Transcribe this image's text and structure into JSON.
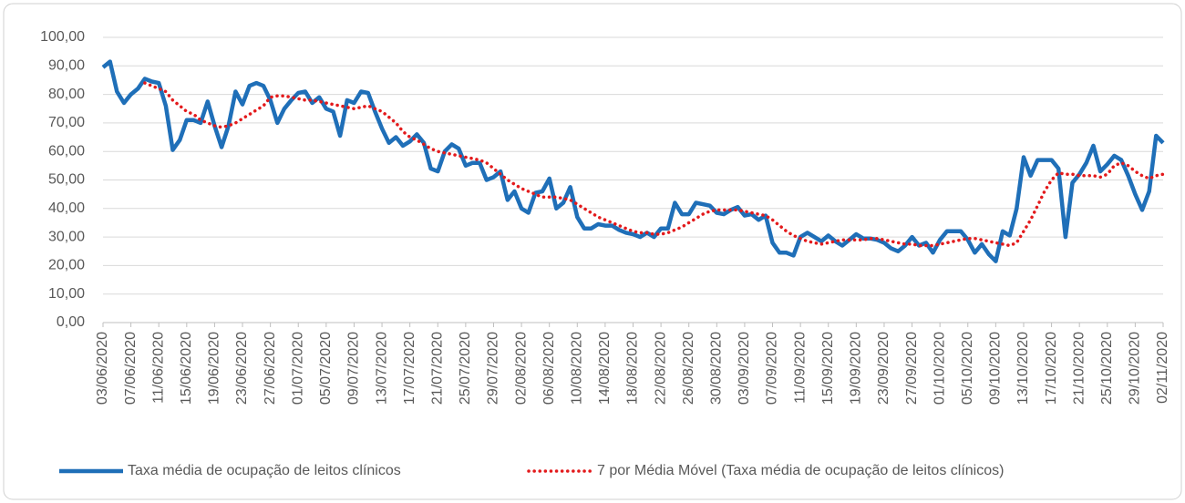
{
  "chart_data": {
    "type": "line",
    "categories": [
      "03/06/2020",
      null,
      null,
      null,
      "07/06/2020",
      null,
      null,
      null,
      "11/06/2020",
      null,
      null,
      null,
      "15/06/2020",
      null,
      null,
      null,
      "19/06/2020",
      null,
      null,
      null,
      "23/06/2020",
      null,
      null,
      null,
      "27/06/2020",
      null,
      null,
      null,
      "01/07/2020",
      null,
      null,
      null,
      "05/07/2020",
      null,
      null,
      null,
      "09/07/2020",
      null,
      null,
      null,
      "13/07/2020",
      null,
      null,
      null,
      "17/07/2020",
      null,
      null,
      null,
      "21/07/2020",
      null,
      null,
      null,
      "25/07/2020",
      null,
      null,
      null,
      "29/07/2020",
      null,
      null,
      null,
      "02/08/2020",
      null,
      null,
      null,
      "06/08/2020",
      null,
      null,
      null,
      "10/08/2020",
      null,
      null,
      null,
      "14/08/2020",
      null,
      null,
      null,
      "18/08/2020",
      null,
      null,
      null,
      "22/08/2020",
      null,
      null,
      null,
      "26/08/2020",
      null,
      null,
      null,
      "30/08/2020",
      null,
      null,
      null,
      "03/09/2020",
      null,
      null,
      null,
      "07/09/2020",
      null,
      null,
      null,
      "11/09/2020",
      null,
      null,
      null,
      "15/09/2020",
      null,
      null,
      null,
      "19/09/2020",
      null,
      null,
      null,
      "23/09/2020",
      null,
      null,
      null,
      "27/09/2020",
      null,
      null,
      null,
      "01/10/2020",
      null,
      null,
      null,
      "05/10/2020",
      null,
      null,
      null,
      "09/10/2020",
      null,
      null,
      null,
      "13/10/2020",
      null,
      null,
      null,
      "17/10/2020",
      null,
      null,
      null,
      "21/10/2020",
      null,
      null,
      null,
      "25/10/2020",
      null,
      null,
      null,
      "29/10/2020",
      null,
      null,
      null,
      "02/11/2020"
    ],
    "series": [
      {
        "name": "Taxa média de ocupação de leitos clínicos",
        "color": "#1f6fb8",
        "style": "solid",
        "values": [
          89.5,
          91.5,
          81,
          77,
          80,
          82,
          85.5,
          84.5,
          84,
          76,
          60.5,
          64,
          71,
          71,
          70,
          77.5,
          69,
          61.5,
          69,
          81,
          76.5,
          83,
          84,
          83,
          78,
          70,
          75,
          78,
          80.5,
          81,
          77,
          79,
          75,
          74,
          65.5,
          78,
          77,
          81,
          80.5,
          74,
          68,
          63,
          65,
          62,
          63.5,
          66,
          63,
          54,
          53,
          60,
          62.5,
          61,
          55,
          56,
          56,
          50,
          51,
          53,
          43,
          46,
          40,
          38.5,
          45.5,
          46,
          50.5,
          40,
          42,
          47.5,
          37,
          33,
          33,
          34.5,
          34,
          34,
          32.5,
          31.5,
          31,
          30,
          31.5,
          30,
          33,
          33,
          42,
          38,
          38,
          42,
          41.5,
          41,
          38.5,
          38,
          39.5,
          40.5,
          37.5,
          38,
          36,
          37.5,
          28,
          24.5,
          24.5,
          23.5,
          30,
          31.5,
          30,
          28.5,
          30.5,
          28.5,
          27,
          29,
          31,
          29.5,
          29.5,
          29,
          28,
          26,
          25,
          27,
          30,
          27,
          28,
          24.5,
          29,
          32,
          32,
          32,
          29,
          24.5,
          27.5,
          24,
          21.5,
          32,
          30.5,
          40,
          58,
          51.5,
          57,
          57,
          57,
          54,
          30,
          49,
          52,
          56,
          62,
          53,
          55.5,
          58.5,
          57,
          51.5,
          45,
          39.5,
          46,
          65.5,
          63
        ]
      },
      {
        "name": "7 por Média Móvel (Taxa média de ocupação de leitos clínicos)",
        "color": "#e31a1c",
        "style": "dotted",
        "values": [
          null,
          null,
          null,
          null,
          null,
          null,
          84,
          83,
          82,
          81,
          78,
          76,
          74,
          73,
          71,
          70,
          69,
          68.5,
          69,
          70,
          71.5,
          73,
          74.5,
          76,
          79,
          79.5,
          79.5,
          79,
          78.5,
          78,
          78,
          77.5,
          77,
          76.5,
          76,
          75.5,
          75,
          75.5,
          76,
          75,
          74,
          72,
          70,
          67,
          65,
          64,
          62.5,
          61,
          60,
          59.5,
          59,
          58.5,
          58,
          57.5,
          57,
          56,
          54,
          52,
          50,
          48.5,
          47,
          46,
          45,
          44,
          44,
          44,
          43.5,
          43,
          41.5,
          40,
          38.5,
          37,
          36,
          35,
          34,
          33,
          32,
          31.5,
          31.5,
          31,
          31,
          31.5,
          32.5,
          33.5,
          35,
          36.5,
          38,
          39,
          39.5,
          39.5,
          39.5,
          39.5,
          39,
          38.5,
          38,
          37.5,
          36,
          34,
          32,
          30.5,
          29.5,
          28.5,
          28,
          27.5,
          28,
          28.5,
          29,
          29,
          29,
          29,
          29.5,
          29.5,
          29,
          28.5,
          28,
          27.5,
          27.5,
          27,
          27,
          27,
          27.5,
          28,
          28.5,
          29,
          29.5,
          29.5,
          29,
          28.5,
          28,
          27.5,
          27,
          28,
          32,
          36,
          41,
          46,
          50,
          52.5,
          52,
          52,
          51.5,
          51.5,
          51.5,
          51,
          52,
          55,
          56,
          55,
          53,
          51.5,
          50.5,
          51.5,
          52
        ]
      }
    ],
    "ylim": [
      0,
      100
    ],
    "yticks": [
      {
        "value": 0,
        "label": "0,00"
      },
      {
        "value": 10,
        "label": "10,00"
      },
      {
        "value": 20,
        "label": "20,00"
      },
      {
        "value": 30,
        "label": "30,00"
      },
      {
        "value": 40,
        "label": "40,00"
      },
      {
        "value": 50,
        "label": "50,00"
      },
      {
        "value": 60,
        "label": "60,00"
      },
      {
        "value": 70,
        "label": "70,00"
      },
      {
        "value": 80,
        "label": "80,00"
      },
      {
        "value": 90,
        "label": "90,00"
      },
      {
        "value": 100,
        "label": "100,00"
      }
    ],
    "grid": true,
    "legend": "bottom"
  }
}
